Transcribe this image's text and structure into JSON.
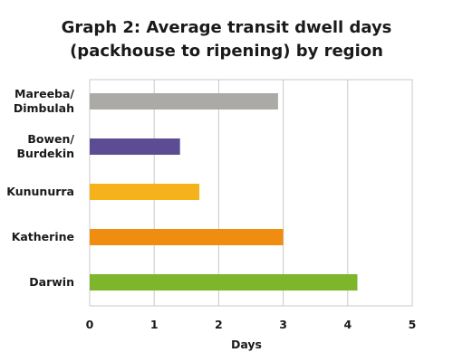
{
  "chart_data": {
    "type": "bar",
    "orientation": "horizontal",
    "title_lines": [
      "Graph 2: Average transit dwell days",
      "(packhouse to ripening) by region"
    ],
    "xlabel": "Days",
    "ylabel": "",
    "xlim": [
      0,
      5
    ],
    "xticks": [
      "0",
      "1",
      "2",
      "3",
      "4",
      "5"
    ],
    "grid": "vertical",
    "legend": "none",
    "categories": [
      {
        "lines": [
          "Mareeba/",
          "Dimbulah"
        ]
      },
      {
        "lines": [
          "Bowen/",
          "Burdekin"
        ]
      },
      {
        "lines": [
          "Kununurra"
        ]
      },
      {
        "lines": [
          "Katherine"
        ]
      },
      {
        "lines": [
          "Darwin"
        ]
      }
    ],
    "values": [
      2.92,
      1.4,
      1.7,
      3.0,
      4.15
    ],
    "colors": [
      "#abaaa7",
      "#5c4c94",
      "#f6b21a",
      "#f08c0f",
      "#7db52b"
    ]
  }
}
